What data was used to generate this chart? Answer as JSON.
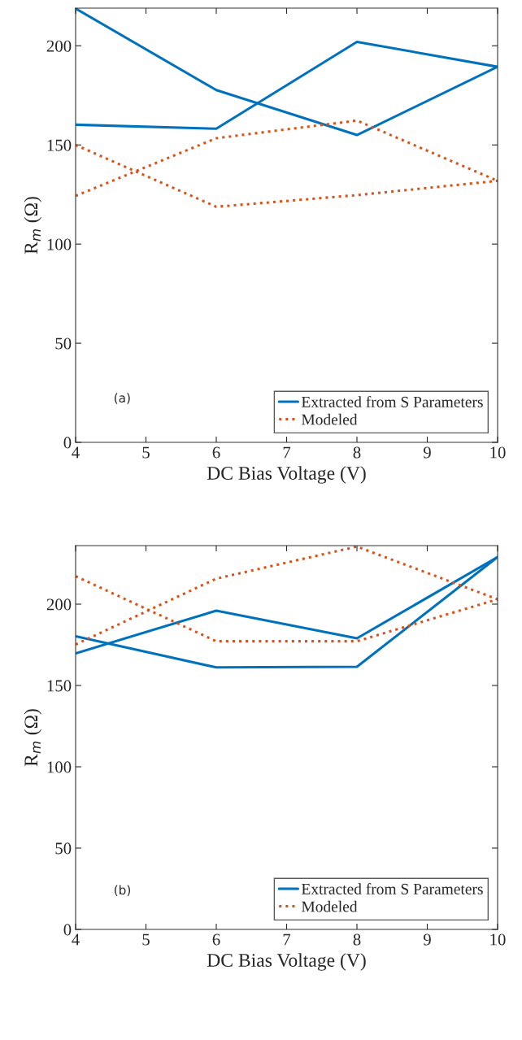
{
  "chart_data": [
    {
      "type": "line",
      "x": [
        4,
        6,
        8,
        10
      ],
      "xlabel": "DC Bias Voltage (V)",
      "ylabel": "R$_{m}$ (Ω)",
      "xlim": [
        4,
        10
      ],
      "ylim": [
        0,
        219
      ],
      "xticks": [
        4,
        5,
        6,
        7,
        8,
        9,
        10
      ],
      "yticks": [
        0,
        50,
        100,
        150,
        200
      ],
      "grid": false,
      "legend": "bottom right",
      "annotations": [
        "(a)"
      ],
      "series": [
        {
          "name": "Extracted from S Parameters",
          "color": "#0072bd",
          "line_style": "solid",
          "values": [
            218.8,
            177.7,
            155,
            189.4
          ]
        },
        {
          "color": "#0072bd",
          "line_style": "solid",
          "values": [
            160.2,
            158.2,
            202,
            189.4
          ]
        },
        {
          "name": "Modeled",
          "color": "#d95319",
          "line_style": "dotted",
          "values": [
            150,
            118.8,
            124.7,
            131.9
          ]
        },
        {
          "color": "#d95319",
          "line_style": "dotted",
          "values": [
            124.3,
            153.4,
            162.3,
            131.9
          ]
        }
      ]
    },
    {
      "type": "line",
      "x": [
        4,
        6,
        8,
        10
      ],
      "xlabel": "DC Bias Voltage (V)",
      "ylabel": "R$_{m}$ (Ω)",
      "xlim": [
        4,
        10
      ],
      "ylim": [
        0,
        236
      ],
      "xticks": [
        4,
        5,
        6,
        7,
        8,
        9,
        10
      ],
      "yticks": [
        0,
        50,
        100,
        150,
        200
      ],
      "grid": false,
      "legend": "bottom right",
      "annotations": [
        "(b)"
      ],
      "series": [
        {
          "name": "Extracted from S Parameters",
          "color": "#0072bd",
          "line_style": "solid",
          "values": [
            169.7,
            196,
            179,
            229
          ]
        },
        {
          "color": "#0072bd",
          "line_style": "solid",
          "values": [
            180.3,
            161.1,
            161.5,
            229
          ]
        },
        {
          "name": "Modeled",
          "color": "#d95319",
          "line_style": "dotted",
          "values": [
            217.2,
            177.2,
            177.2,
            203
          ]
        },
        {
          "color": "#d95319",
          "line_style": "dotted",
          "values": [
            175.2,
            215.7,
            235.4,
            203
          ]
        }
      ]
    }
  ]
}
